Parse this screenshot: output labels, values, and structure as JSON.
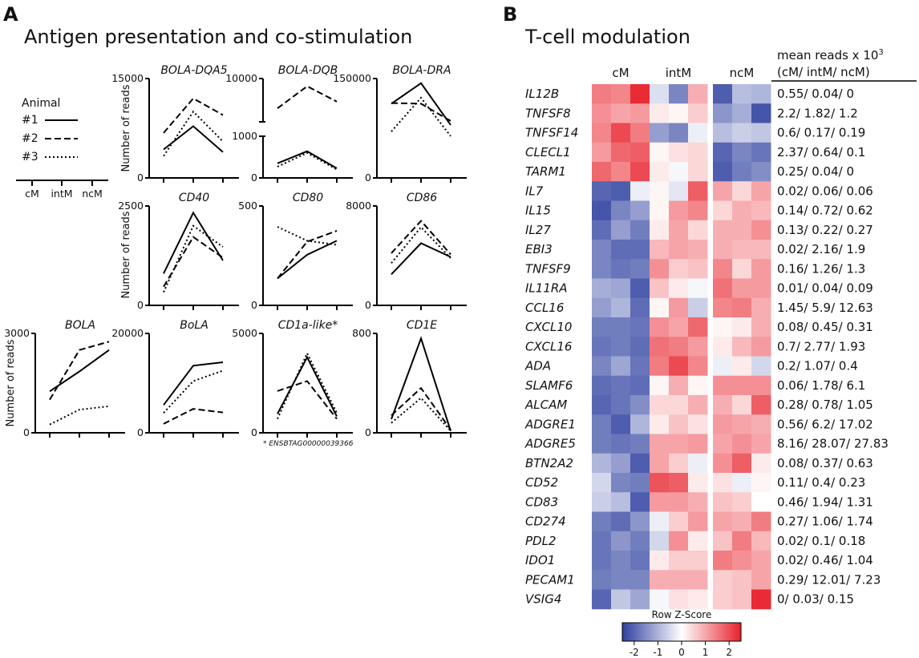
{
  "panel_a": {
    "letter": "A",
    "title": "Antigen presentation and co-stimulation",
    "ylabel": "Number of reads",
    "legend": {
      "title": "Animal",
      "entries": [
        "#1",
        "#2",
        "#3"
      ],
      "x_labels": [
        "cM",
        "intM",
        "ncM"
      ]
    },
    "footnote": "* ENSBTAG00000039366"
  },
  "panel_b": {
    "letter": "B",
    "title": "T-cell modulation",
    "mean_header_1": "mean reads x 10",
    "mean_header_sup": "3",
    "mean_header_2": "(cM/ intM/ ncM)",
    "colorbar_title": "Row Z-Score",
    "colorbar_ticks": [
      "-2",
      "-1",
      "0",
      "1",
      "2"
    ]
  },
  "colors": {
    "low": "#3c4da6",
    "mid": "#ffffff",
    "high": "#e8212b",
    "line": "#000000"
  },
  "chart_data": [
    {
      "type": "line",
      "title": "BOLA-DQA5",
      "categories": [
        "cM",
        "intM",
        "ncM"
      ],
      "ylim": [
        0,
        15000
      ],
      "yticks": [
        "0",
        "15000"
      ],
      "series": [
        {
          "name": "#1",
          "values": [
            4300,
            7800,
            3900
          ]
        },
        {
          "name": "#2",
          "values": [
            6800,
            12000,
            9500
          ]
        },
        {
          "name": "#3",
          "values": [
            3300,
            10000,
            5500
          ]
        }
      ]
    },
    {
      "type": "line",
      "title": "BOLA-DQB",
      "categories": [
        "cM",
        "intM",
        "ncM"
      ],
      "axis_break": true,
      "lower_ylim": [
        0,
        1000
      ],
      "upper_ylim": [
        1000,
        10000
      ],
      "yticks": [
        "0",
        "1000",
        "10000"
      ],
      "series": [
        {
          "name": "#1",
          "values": [
            350,
            640,
            230
          ]
        },
        {
          "name": "#2",
          "values": [
            3800,
            8400,
            5200
          ]
        },
        {
          "name": "#3",
          "values": [
            270,
            600,
            200
          ]
        }
      ]
    },
    {
      "type": "line",
      "title": "BOLA-DRA",
      "categories": [
        "cM",
        "intM",
        "ncM"
      ],
      "ylim": [
        0,
        150000
      ],
      "yticks": [
        "0",
        "150000"
      ],
      "series": [
        {
          "name": "#1",
          "values": [
            112000,
            143000,
            80000
          ]
        },
        {
          "name": "#2",
          "values": [
            113000,
            112000,
            86000
          ]
        },
        {
          "name": "#3",
          "values": [
            70000,
            121000,
            63000
          ]
        }
      ]
    },
    {
      "type": "line",
      "title": "CD40",
      "categories": [
        "cM",
        "intM",
        "ncM"
      ],
      "ylim": [
        0,
        2500
      ],
      "yticks": [
        "0",
        "2500"
      ],
      "series": [
        {
          "name": "#1",
          "values": [
            800,
            2330,
            1130
          ]
        },
        {
          "name": "#2",
          "values": [
            470,
            1720,
            1200
          ]
        },
        {
          "name": "#3",
          "values": [
            330,
            2000,
            1470
          ]
        }
      ]
    },
    {
      "type": "line",
      "title": "CD80",
      "categories": [
        "cM",
        "intM",
        "ncM"
      ],
      "ylim": [
        0,
        500
      ],
      "yticks": [
        "0",
        "500"
      ],
      "series": [
        {
          "name": "#1",
          "values": [
            135,
            255,
            325
          ]
        },
        {
          "name": "#2",
          "values": [
            135,
            320,
            375
          ]
        },
        {
          "name": "#3",
          "values": [
            395,
            325,
            305
          ]
        }
      ]
    },
    {
      "type": "line",
      "title": "CD86",
      "categories": [
        "cM",
        "intM",
        "ncM"
      ],
      "ylim": [
        0,
        8000
      ],
      "yticks": [
        "0",
        "8000"
      ],
      "series": [
        {
          "name": "#1",
          "values": [
            2500,
            5000,
            3900
          ]
        },
        {
          "name": "#2",
          "values": [
            4200,
            6800,
            4100
          ]
        },
        {
          "name": "#3",
          "values": [
            3400,
            6300,
            3800
          ]
        }
      ]
    },
    {
      "type": "line",
      "title": "BOLA",
      "categories": [
        "cM",
        "intM",
        "ncM"
      ],
      "ylim": [
        0,
        3000
      ],
      "yticks": [
        "0",
        "3000"
      ],
      "series": [
        {
          "name": "#1",
          "values": [
            1250,
            1850,
            2500
          ]
        },
        {
          "name": "#2",
          "values": [
            1000,
            2500,
            2750
          ]
        },
        {
          "name": "#3",
          "values": [
            250,
            700,
            800
          ]
        }
      ]
    },
    {
      "type": "line",
      "title": "BoLA",
      "categories": [
        "cM",
        "intM",
        "ncM"
      ],
      "ylim": [
        0,
        20000
      ],
      "yticks": [
        "0",
        "20000"
      ],
      "series": [
        {
          "name": "#1",
          "values": [
            5600,
            13500,
            14200
          ]
        },
        {
          "name": "#2",
          "values": [
            1800,
            4800,
            4100
          ]
        },
        {
          "name": "#3",
          "values": [
            4000,
            10400,
            12500
          ]
        }
      ]
    },
    {
      "type": "line",
      "title": "CD1a-like*",
      "categories": [
        "cM",
        "intM",
        "ncM"
      ],
      "ylim": [
        0,
        5000
      ],
      "yticks": [
        "0",
        "5000"
      ],
      "series": [
        {
          "name": "#1",
          "values": [
            950,
            3800,
            830
          ]
        },
        {
          "name": "#2",
          "values": [
            2100,
            2600,
            700
          ]
        },
        {
          "name": "#3",
          "values": [
            700,
            4000,
            1000
          ]
        }
      ]
    },
    {
      "type": "line",
      "title": "CD1E",
      "categories": [
        "cM",
        "intM",
        "ncM"
      ],
      "ylim": [
        0,
        800
      ],
      "yticks": [
        "0",
        "800"
      ],
      "series": [
        {
          "name": "#1",
          "values": [
            110,
            760,
            15
          ]
        },
        {
          "name": "#2",
          "values": [
            140,
            360,
            25
          ]
        },
        {
          "name": "#3",
          "values": [
            80,
            280,
            15
          ]
        }
      ]
    },
    {
      "type": "heatmap",
      "title": "T-cell modulation",
      "column_groups": [
        "cM",
        "intM",
        "ncM"
      ],
      "colorbar": {
        "label": "Row Z-Score",
        "range": [
          -2.5,
          2.5
        ]
      },
      "rows": [
        {
          "gene": "IL12B",
          "mean": "0.55/ 0.04/ 0",
          "z": [
            1.3,
            1.2,
            2.1,
            -0.4,
            -1.5,
            0.8,
            -2.0,
            -0.8,
            -0.9
          ]
        },
        {
          "gene": "TNFSF8",
          "mean": "2.2/ 1.82/ 1.2",
          "z": [
            1.1,
            0.9,
            1.0,
            0.2,
            0.1,
            0.5,
            -1.3,
            -1.0,
            -2.1
          ]
        },
        {
          "gene": "TNFSF14",
          "mean": "0.6/ 0.17/ 0.19",
          "z": [
            1.2,
            1.8,
            1.3,
            -1.2,
            -1.5,
            -0.2,
            -0.8,
            -0.6,
            -0.7
          ]
        },
        {
          "gene": "CLECL1",
          "mean": "2.37/ 0.64/ 0.1",
          "z": [
            1.0,
            1.5,
            1.6,
            0.1,
            0.3,
            0.4,
            -1.9,
            -1.5,
            -1.7
          ]
        },
        {
          "gene": "TARM1",
          "mean": "0.25/ 0.04/ 0",
          "z": [
            1.5,
            1.2,
            1.8,
            0.2,
            -0.1,
            0.4,
            -2.0,
            -1.6,
            -1.4
          ]
        },
        {
          "gene": "IL7",
          "mean": "0.02/ 0.06/ 0.06",
          "z": [
            -1.9,
            -2.0,
            -0.2,
            0.1,
            -0.3,
            1.6,
            0.9,
            0.4,
            0.9
          ]
        },
        {
          "gene": "IL15",
          "mean": "0.14/ 0.72/ 0.62",
          "z": [
            -2.1,
            -1.5,
            -1.2,
            0.1,
            1.0,
            1.2,
            0.4,
            0.8,
            0.7
          ]
        },
        {
          "gene": "IL27",
          "mean": "0.13/ 0.22/ 0.27",
          "z": [
            -1.8,
            -1.2,
            -1.6,
            0.2,
            0.9,
            0.4,
            0.8,
            0.8,
            1.1
          ]
        },
        {
          "gene": "EBI3",
          "mean": "0.02/ 2.16/ 1.9",
          "z": [
            -1.5,
            -1.8,
            -1.8,
            0.7,
            0.9,
            0.8,
            0.8,
            0.7,
            0.7
          ]
        },
        {
          "gene": "TNFSF9",
          "mean": "0.16/ 1.26/ 1.3",
          "z": [
            -1.5,
            -1.7,
            -1.6,
            1.1,
            0.5,
            0.6,
            1.2,
            0.4,
            1.0
          ]
        },
        {
          "gene": "IL11RA",
          "mean": "0.01/ 0.04/ 0.09",
          "z": [
            -1.0,
            -1.1,
            -2.0,
            0.6,
            0.2,
            -0.1,
            1.4,
            1.0,
            1.0
          ]
        },
        {
          "gene": "CCL16",
          "mean": "1.45/ 5.9/ 12.63",
          "z": [
            -1.2,
            -0.9,
            -1.8,
            0.1,
            1.0,
            -0.6,
            1.2,
            1.3,
            0.8
          ]
        },
        {
          "gene": "CXCL10",
          "mean": "0.08/ 0.45/ 0.31",
          "z": [
            -1.6,
            -1.6,
            -1.7,
            1.1,
            0.9,
            1.5,
            0.1,
            0.2,
            0.8
          ]
        },
        {
          "gene": "CXCL16",
          "mean": "0.7/ 2.77/ 1.93",
          "z": [
            -1.7,
            -1.6,
            -1.8,
            1.4,
            1.3,
            1.0,
            0.2,
            0.7,
            1.0
          ]
        },
        {
          "gene": "ADA",
          "mean": "0.2/ 1.07/ 0.4",
          "z": [
            -1.5,
            -1.1,
            -1.7,
            1.3,
            1.8,
            1.2,
            -0.2,
            0.2,
            -0.5
          ]
        },
        {
          "gene": "SLAMF6",
          "mean": "0.06/ 1.78/ 6.1",
          "z": [
            -1.8,
            -1.7,
            -1.8,
            0.1,
            0.8,
            0.1,
            1.1,
            1.1,
            1.1
          ]
        },
        {
          "gene": "ALCAM",
          "mean": "0.28/ 0.78/ 1.05",
          "z": [
            -1.9,
            -1.7,
            -1.4,
            0.4,
            0.4,
            0.8,
            0.8,
            0.4,
            1.6
          ]
        },
        {
          "gene": "ADGRE1",
          "mean": "0.56/ 6.2/ 17.02",
          "z": [
            -1.6,
            -2.0,
            -0.9,
            0.2,
            0.6,
            0.3,
            1.0,
            0.9,
            0.8
          ]
        },
        {
          "gene": "ADGRE5",
          "mean": "8.16/ 28.07/ 27.83",
          "z": [
            -1.6,
            -1.7,
            -1.6,
            0.9,
            0.9,
            1.0,
            0.9,
            1.1,
            0.9
          ]
        },
        {
          "gene": "BTN2A2",
          "mean": "0.08/ 0.37/ 0.63",
          "z": [
            -0.9,
            -1.2,
            -2.0,
            0.9,
            0.5,
            -0.2,
            1.1,
            1.6,
            0.2
          ]
        },
        {
          "gene": "CD52",
          "mean": "0.11/ 0.4/ 0.23",
          "z": [
            -0.5,
            -1.5,
            -1.6,
            1.7,
            1.6,
            0.2,
            0.3,
            -0.2,
            0.1
          ]
        },
        {
          "gene": "CD83",
          "mean": "0.46/ 1.94/ 1.31",
          "z": [
            -0.6,
            -0.8,
            -2.0,
            1.0,
            1.0,
            0.8,
            0.6,
            0.5,
            0.0
          ]
        },
        {
          "gene": "CD274",
          "mean": "0.27/ 1.06/ 1.74",
          "z": [
            -1.6,
            -1.8,
            -1.3,
            -0.2,
            0.5,
            1.0,
            0.9,
            0.8,
            1.3
          ]
        },
        {
          "gene": "PDL2",
          "mean": "0.02/ 0.1/ 0.18",
          "z": [
            -1.7,
            -1.3,
            -1.6,
            -0.5,
            1.1,
            0.2,
            0.6,
            1.3,
            0.7
          ]
        },
        {
          "gene": "IDO1",
          "mean": "0.02/ 0.46/ 1.04",
          "z": [
            -1.7,
            -1.5,
            -1.7,
            0.2,
            0.5,
            0.5,
            1.3,
            1.1,
            0.9
          ]
        },
        {
          "gene": "PECAM1",
          "mean": "0.29/ 12.01/ 7.23",
          "z": [
            -1.6,
            -1.5,
            -1.5,
            0.8,
            0.8,
            0.8,
            0.5,
            0.6,
            0.9
          ]
        },
        {
          "gene": "VSIG4",
          "mean": "0/ 0.03/ 0.15",
          "z": [
            -1.9,
            -0.7,
            -1.1,
            -0.1,
            0.3,
            0.2,
            0.5,
            0.6,
            2.1
          ]
        }
      ]
    }
  ]
}
